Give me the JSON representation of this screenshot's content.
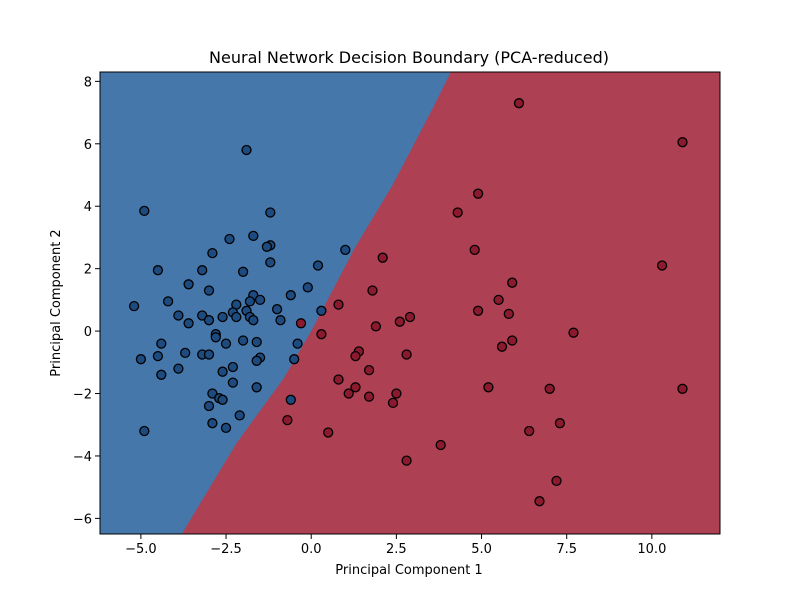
{
  "chart_data": {
    "type": "scatter",
    "title": "Neural Network Decision Boundary (PCA-reduced)",
    "xlabel": "Principal Component 1",
    "ylabel": "Principal Component 2",
    "xlim": [
      -6.2,
      12.0
    ],
    "ylim": [
      -6.5,
      8.3
    ],
    "xticks": [
      -5.0,
      -2.5,
      0.0,
      2.5,
      5.0,
      7.5,
      10.0
    ],
    "xtick_labels": [
      "−5.0",
      "−2.5",
      "0.0",
      "2.5",
      "5.0",
      "7.5",
      "10.0"
    ],
    "yticks": [
      -6,
      -4,
      -2,
      0,
      2,
      4,
      6,
      8
    ],
    "ytick_labels": [
      "−6",
      "−4",
      "−2",
      "0",
      "2",
      "4",
      "6",
      "8"
    ],
    "grid": false,
    "colors": {
      "region_class_0": "#4677ab",
      "region_class_1": "#ad4052",
      "point_class_0": "#1d4b80",
      "point_class_1": "#8c1a2f"
    },
    "decision_boundary": [
      [
        -3.8,
        -6.5
      ],
      [
        -2.2,
        -3.6
      ],
      [
        -0.8,
        -1.5
      ],
      [
        0.0,
        0.0
      ],
      [
        1.3,
        2.7
      ],
      [
        2.4,
        4.7
      ],
      [
        3.6,
        7.2
      ],
      [
        4.1,
        8.3
      ]
    ],
    "series": [
      {
        "class": 0,
        "points": [
          [
            -1.9,
            5.8
          ],
          [
            -4.9,
            3.85
          ],
          [
            -1.2,
            3.8
          ],
          [
            -1.7,
            3.05
          ],
          [
            -2.4,
            2.95
          ],
          [
            -1.2,
            2.75
          ],
          [
            -1.3,
            2.7
          ],
          [
            -2.9,
            2.5
          ],
          [
            -1.2,
            2.2
          ],
          [
            0.2,
            2.1
          ],
          [
            -4.5,
            1.95
          ],
          [
            -3.2,
            1.95
          ],
          [
            -2.0,
            1.9
          ],
          [
            -3.6,
            1.5
          ],
          [
            -0.1,
            1.4
          ],
          [
            -3.0,
            1.3
          ],
          [
            -0.6,
            1.15
          ],
          [
            -1.7,
            1.15
          ],
          [
            -1.5,
            1.0
          ],
          [
            -1.8,
            0.95
          ],
          [
            -4.2,
            0.95
          ],
          [
            -2.2,
            0.85
          ],
          [
            -1.0,
            0.7
          ],
          [
            -1.9,
            0.65
          ],
          [
            0.3,
            0.65
          ],
          [
            -2.3,
            0.6
          ],
          [
            -3.9,
            0.5
          ],
          [
            -3.2,
            0.5
          ],
          [
            -2.6,
            0.45
          ],
          [
            -2.2,
            0.45
          ],
          [
            -1.8,
            0.45
          ],
          [
            -3.0,
            0.35
          ],
          [
            -1.7,
            0.35
          ],
          [
            -0.9,
            0.35
          ],
          [
            -3.6,
            0.25
          ],
          [
            -2.8,
            -0.1
          ],
          [
            -2.8,
            -0.2
          ],
          [
            -2.0,
            -0.3
          ],
          [
            -1.6,
            -0.35
          ],
          [
            -2.5,
            -0.4
          ],
          [
            -4.4,
            -0.4
          ],
          [
            -0.4,
            -0.4
          ],
          [
            -3.7,
            -0.7
          ],
          [
            -3.2,
            -0.75
          ],
          [
            -3.0,
            -0.75
          ],
          [
            -4.5,
            -0.8
          ],
          [
            -1.5,
            -0.85
          ],
          [
            -5.0,
            -0.9
          ],
          [
            -0.5,
            -0.9
          ],
          [
            -1.6,
            -0.95
          ],
          [
            -2.3,
            -1.15
          ],
          [
            -3.9,
            -1.2
          ],
          [
            -2.6,
            -1.3
          ],
          [
            -4.4,
            -1.4
          ],
          [
            -2.3,
            -1.65
          ],
          [
            -1.6,
            -1.8
          ],
          [
            -2.9,
            -2.0
          ],
          [
            -2.7,
            -2.15
          ],
          [
            -2.6,
            -2.2
          ],
          [
            -0.6,
            -2.2
          ],
          [
            -3.0,
            -2.4
          ],
          [
            -2.1,
            -2.7
          ],
          [
            -2.9,
            -2.95
          ],
          [
            -2.5,
            -3.1
          ],
          [
            -4.9,
            -3.2
          ],
          [
            -5.2,
            0.8
          ],
          [
            1.0,
            2.6
          ]
        ]
      },
      {
        "class": 1,
        "points": [
          [
            6.1,
            7.3
          ],
          [
            10.9,
            6.05
          ],
          [
            4.9,
            4.4
          ],
          [
            4.3,
            3.8
          ],
          [
            4.8,
            2.6
          ],
          [
            2.1,
            2.35
          ],
          [
            10.3,
            2.1
          ],
          [
            5.9,
            1.55
          ],
          [
            1.8,
            1.3
          ],
          [
            5.5,
            1.0
          ],
          [
            0.8,
            0.85
          ],
          [
            4.9,
            0.65
          ],
          [
            5.8,
            0.55
          ],
          [
            2.9,
            0.45
          ],
          [
            2.6,
            0.3
          ],
          [
            1.9,
            0.15
          ],
          [
            -0.3,
            0.25
          ],
          [
            7.7,
            -0.05
          ],
          [
            0.3,
            -0.1
          ],
          [
            5.9,
            -0.3
          ],
          [
            5.6,
            -0.5
          ],
          [
            1.4,
            -0.65
          ],
          [
            1.3,
            -0.8
          ],
          [
            2.8,
            -0.75
          ],
          [
            1.7,
            -1.25
          ],
          [
            0.8,
            -1.55
          ],
          [
            1.3,
            -1.8
          ],
          [
            5.2,
            -1.8
          ],
          [
            7.0,
            -1.85
          ],
          [
            10.9,
            -1.85
          ],
          [
            1.1,
            -2.0
          ],
          [
            2.5,
            -2.0
          ],
          [
            1.7,
            -2.1
          ],
          [
            2.4,
            -2.3
          ],
          [
            -0.7,
            -2.85
          ],
          [
            7.3,
            -2.95
          ],
          [
            6.4,
            -3.2
          ],
          [
            0.5,
            -3.25
          ],
          [
            3.8,
            -3.65
          ],
          [
            2.8,
            -4.15
          ],
          [
            7.2,
            -4.8
          ],
          [
            6.7,
            -5.45
          ]
        ]
      }
    ]
  }
}
